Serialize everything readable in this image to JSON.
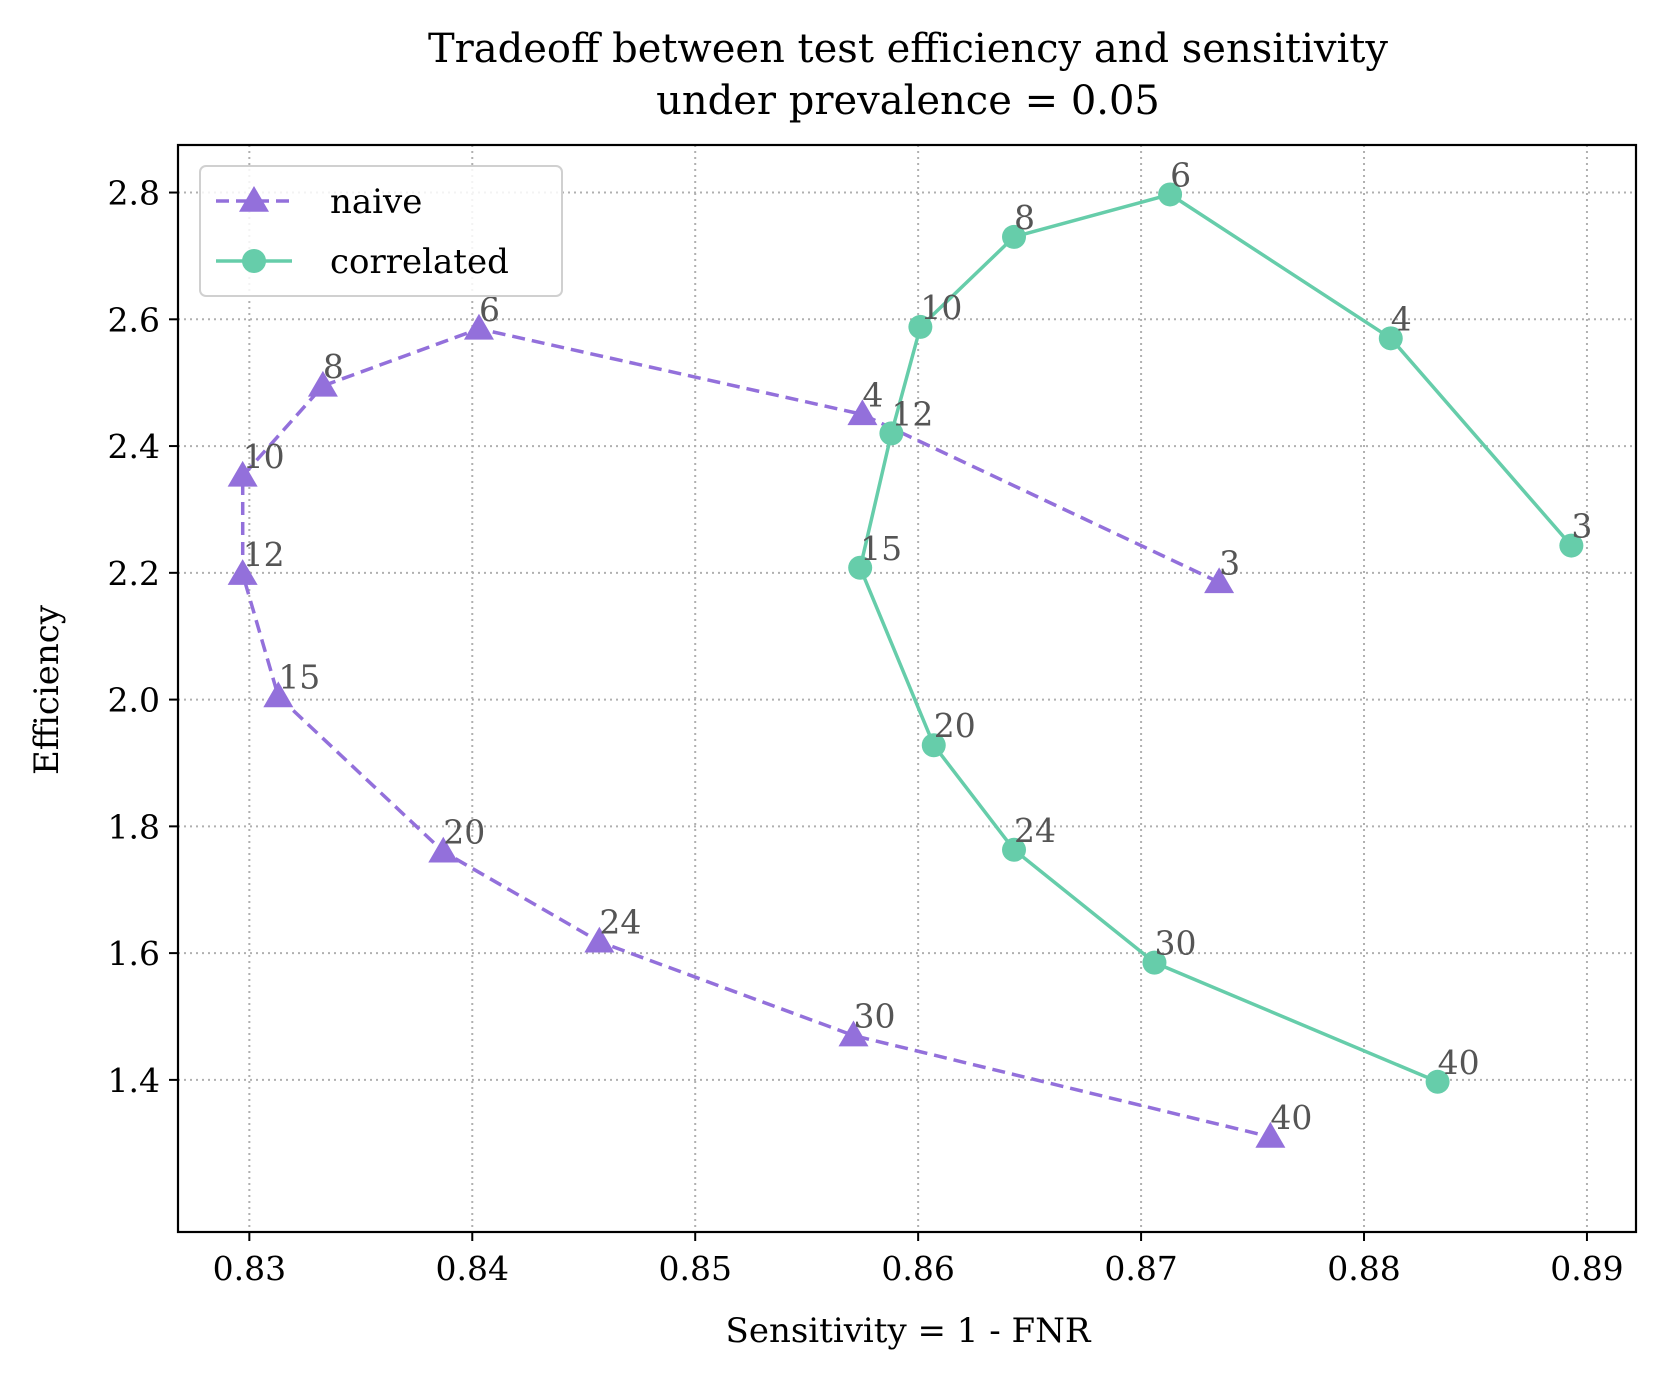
{
  "chart_data": {
    "type": "line",
    "title_lines": [
      "Tradeoff between test efficiency and sensitivity",
      "under prevalence = 0.05"
    ],
    "xlabel": "Sensitivity = 1 - FNR",
    "ylabel": "Efficiency",
    "xlim": [
      0.8268,
      0.8922
    ],
    "ylim": [
      1.16,
      2.875
    ],
    "xticks": [
      0.83,
      0.84,
      0.85,
      0.86,
      0.87,
      0.88,
      0.89
    ],
    "xtick_labels": [
      "0.83",
      "0.84",
      "0.85",
      "0.86",
      "0.87",
      "0.88",
      "0.89"
    ],
    "yticks": [
      1.4,
      1.6,
      1.8,
      2.0,
      2.2,
      2.4,
      2.6,
      2.8
    ],
    "ytick_labels": [
      "1.4",
      "1.6",
      "1.8",
      "2.0",
      "2.2",
      "2.4",
      "2.6",
      "2.8"
    ],
    "grid": true,
    "legend_position": "top-left",
    "series": [
      {
        "name": "naive",
        "color": "#9370DB",
        "line_style": "dashed",
        "marker": "triangle",
        "points": [
          {
            "label": "3",
            "x": 0.8735,
            "y": 2.185
          },
          {
            "label": "4",
            "x": 0.8575,
            "y": 2.45
          },
          {
            "label": "6",
            "x": 0.8403,
            "y": 2.585
          },
          {
            "label": "8",
            "x": 0.8333,
            "y": 2.495
          },
          {
            "label": "10",
            "x": 0.8297,
            "y": 2.353
          },
          {
            "label": "12",
            "x": 0.8297,
            "y": 2.198
          },
          {
            "label": "15",
            "x": 0.8313,
            "y": 2.005
          },
          {
            "label": "20",
            "x": 0.8387,
            "y": 1.76
          },
          {
            "label": "24",
            "x": 0.8457,
            "y": 1.618
          },
          {
            "label": "30",
            "x": 0.8571,
            "y": 1.47
          },
          {
            "label": "40",
            "x": 0.8758,
            "y": 1.31
          }
        ]
      },
      {
        "name": "correlated",
        "color": "#66CDAA",
        "line_style": "solid",
        "marker": "circle",
        "points": [
          {
            "label": "3",
            "x": 0.8893,
            "y": 2.243
          },
          {
            "label": "4",
            "x": 0.8812,
            "y": 2.57
          },
          {
            "label": "6",
            "x": 0.8713,
            "y": 2.797
          },
          {
            "label": "8",
            "x": 0.8643,
            "y": 2.73
          },
          {
            "label": "10",
            "x": 0.8601,
            "y": 2.588
          },
          {
            "label": "12",
            "x": 0.8588,
            "y": 2.42
          },
          {
            "label": "15",
            "x": 0.8574,
            "y": 2.208
          },
          {
            "label": "20",
            "x": 0.8607,
            "y": 1.928
          },
          {
            "label": "24",
            "x": 0.8643,
            "y": 1.763
          },
          {
            "label": "30",
            "x": 0.8706,
            "y": 1.585
          },
          {
            "label": "40",
            "x": 0.8833,
            "y": 1.397
          }
        ]
      }
    ]
  }
}
